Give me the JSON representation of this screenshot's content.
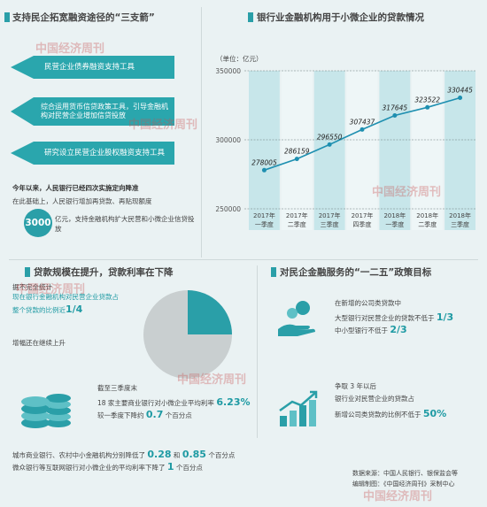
{
  "left_top": {
    "title": "支持民企拓宽融资途径的“三支箭”",
    "arrows": [
      "民营企业债券融资支持工具",
      "综合运用货币信贷政策工具，引导金融机构对民营企业增加信贷投放",
      "研究设立民营企业股权融资支持工具"
    ],
    "para1": "今年以来，人民银行已经四次实施定向降准",
    "para2a": "在此基础上，人民银行增加再贷款、再贴现额度",
    "amount": "3000",
    "para2b": "亿元，支持金融机构扩大民营和小微企业信贷投放"
  },
  "chart_data": {
    "type": "line",
    "title": "银行业金融机构用于小微企业的贷款情况",
    "unit": "（单位：亿元）",
    "categories": [
      "2017年一季度",
      "2017年二季度",
      "2017年三季度",
      "2017年四季度",
      "2018年一季度",
      "2018年二季度",
      "2018年三季度"
    ],
    "values": [
      278005,
      286159,
      296550,
      307437,
      317645,
      323522,
      330445
    ],
    "value_labels": [
      "278005",
      "286159",
      "296550",
      "307437",
      "317645",
      "323522",
      "330445"
    ],
    "yticks": [
      "350000",
      "300000",
      "250000"
    ],
    "ylim": [
      250000,
      350000
    ],
    "color": "#1e8fb0"
  },
  "left_bottom": {
    "title": "贷款规模在提升，贷款利率在下降",
    "pie_title": "据不完全统计",
    "pie_text": "现在银行金融机构对民营企业贷款占整个贷款的比例近",
    "pie_value": "1/4",
    "pie_fraction": 0.25,
    "growth": "增幅还在继续上升",
    "rate_head": "截至三季度末",
    "rate_text": "18 家主要商业银行对小微企业平均利率",
    "rate_value": "6.23%",
    "rate_down": "较一季度下降约",
    "rate_down_value": "0.7",
    "rate_down_unit": "个百分点",
    "bottom1a": "城市商业银行、农村中小金融机构分别降低了",
    "bottom1b": "0.28",
    "bottom1c": "和",
    "bottom1d": "0.85",
    "bottom1e": "个百分点",
    "bottom2a": "微众银行等互联网银行对小微企业的平均利率下降了",
    "bottom2b": "1",
    "bottom2c": "个百分点"
  },
  "right_bottom": {
    "title": "对民企金融服务的“一二五”政策目标",
    "goal1_head": "在新增的公司类贷款中",
    "goal1_line1": "大型银行对民营企业的贷款不低于",
    "goal1_val1": "1/3",
    "goal1_line2": "中小型银行不低于",
    "goal1_val2": "2/3",
    "goal2_head": "争取 3 年以后",
    "goal2_line1": "银行业对民营企业的贷款占",
    "goal2_line2": "新增公司类贷款的比例不低于",
    "goal2_val": "50%"
  },
  "source": {
    "line1": "数据来源：中国人民银行、银保监会等",
    "line2": "编辑制图：《中国经济周刊》采制中心"
  },
  "watermark": "中国经济周刊"
}
